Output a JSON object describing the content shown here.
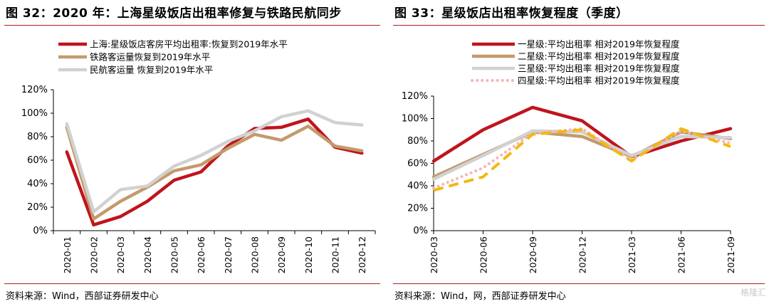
{
  "left_panel": {
    "title": "图 32：2020 年：上海星级饭店出租率修复与铁路民航同步",
    "source": "资料来源：Wind，西部证券研发中心"
  },
  "right_panel": {
    "title": "图 33：星级饭店出租率恢复程度（季度）",
    "source": "资料来源：Wind，网，西部证券研发中心"
  },
  "watermark": "格隆汇",
  "chart_data": [
    {
      "type": "line",
      "title": "",
      "categories": [
        "2020-01",
        "2020-02",
        "2020-03",
        "2020-04",
        "2020-05",
        "2020-06",
        "2020-07",
        "2020-08",
        "2020-09",
        "2020-10",
        "2020-11",
        "2020-12"
      ],
      "ylim": [
        0,
        120
      ],
      "yticks": [
        0,
        20,
        40,
        60,
        80,
        100,
        120
      ],
      "y_tick_format": "percent",
      "grid": false,
      "legend_placement": "top-left",
      "series": [
        {
          "name": "上海:星级饭店客房平均出租率:恢复到2019年水平",
          "color": "#c0141c",
          "dash": "solid",
          "values": [
            67,
            5,
            12,
            25,
            43,
            50,
            72,
            87,
            88,
            95,
            71,
            66
          ]
        },
        {
          "name": "铁路客运量恢复到2019年水平",
          "color": "#c49a6c",
          "dash": "solid",
          "values": [
            88,
            10,
            25,
            37,
            51,
            56,
            70,
            82,
            77,
            89,
            72,
            68
          ]
        },
        {
          "name": "民航客运量 恢复到2019年水平",
          "color": "#d1d1d1",
          "dash": "solid",
          "values": [
            91,
            16,
            35,
            38,
            55,
            64,
            76,
            85,
            97,
            102,
            92,
            90
          ]
        }
      ]
    },
    {
      "type": "line",
      "title": "",
      "categories": [
        "2020-03",
        "2020-06",
        "2020-09",
        "2020-12",
        "2021-03",
        "2021-06",
        "2021-09"
      ],
      "ylim": [
        0,
        120
      ],
      "yticks": [
        0,
        20,
        40,
        60,
        80,
        100,
        120
      ],
      "y_tick_format": "percent",
      "grid": false,
      "legend_placement": "top-left",
      "series": [
        {
          "name": "一星级:平均出租率 相对2019年恢复程度",
          "color": "#c0141c",
          "dash": "solid",
          "values": [
            62,
            90,
            110,
            98,
            66,
            80,
            91
          ]
        },
        {
          "name": "二星级:平均出租率 相对2019年恢复程度",
          "color": "#c49a6c",
          "dash": "solid",
          "values": [
            48,
            68,
            88,
            84,
            66,
            88,
            82
          ]
        },
        {
          "name": "三星级:平均出租率 相对2019年恢复程度",
          "color": "#d1d1d1",
          "dash": "solid",
          "values": [
            46,
            67,
            89,
            88,
            67,
            84,
            83
          ]
        },
        {
          "name": "四星级:平均出租率 相对2019年恢复程度",
          "color": "#f5b6b6",
          "dash": "dotted",
          "values": [
            38,
            56,
            87,
            91,
            63,
            89,
            78
          ]
        },
        {
          "name": "",
          "color": "#f2b90f",
          "dash": "dashed",
          "unlabeled": true,
          "values": [
            36,
            48,
            86,
            90,
            62,
            91,
            75
          ]
        }
      ]
    }
  ]
}
